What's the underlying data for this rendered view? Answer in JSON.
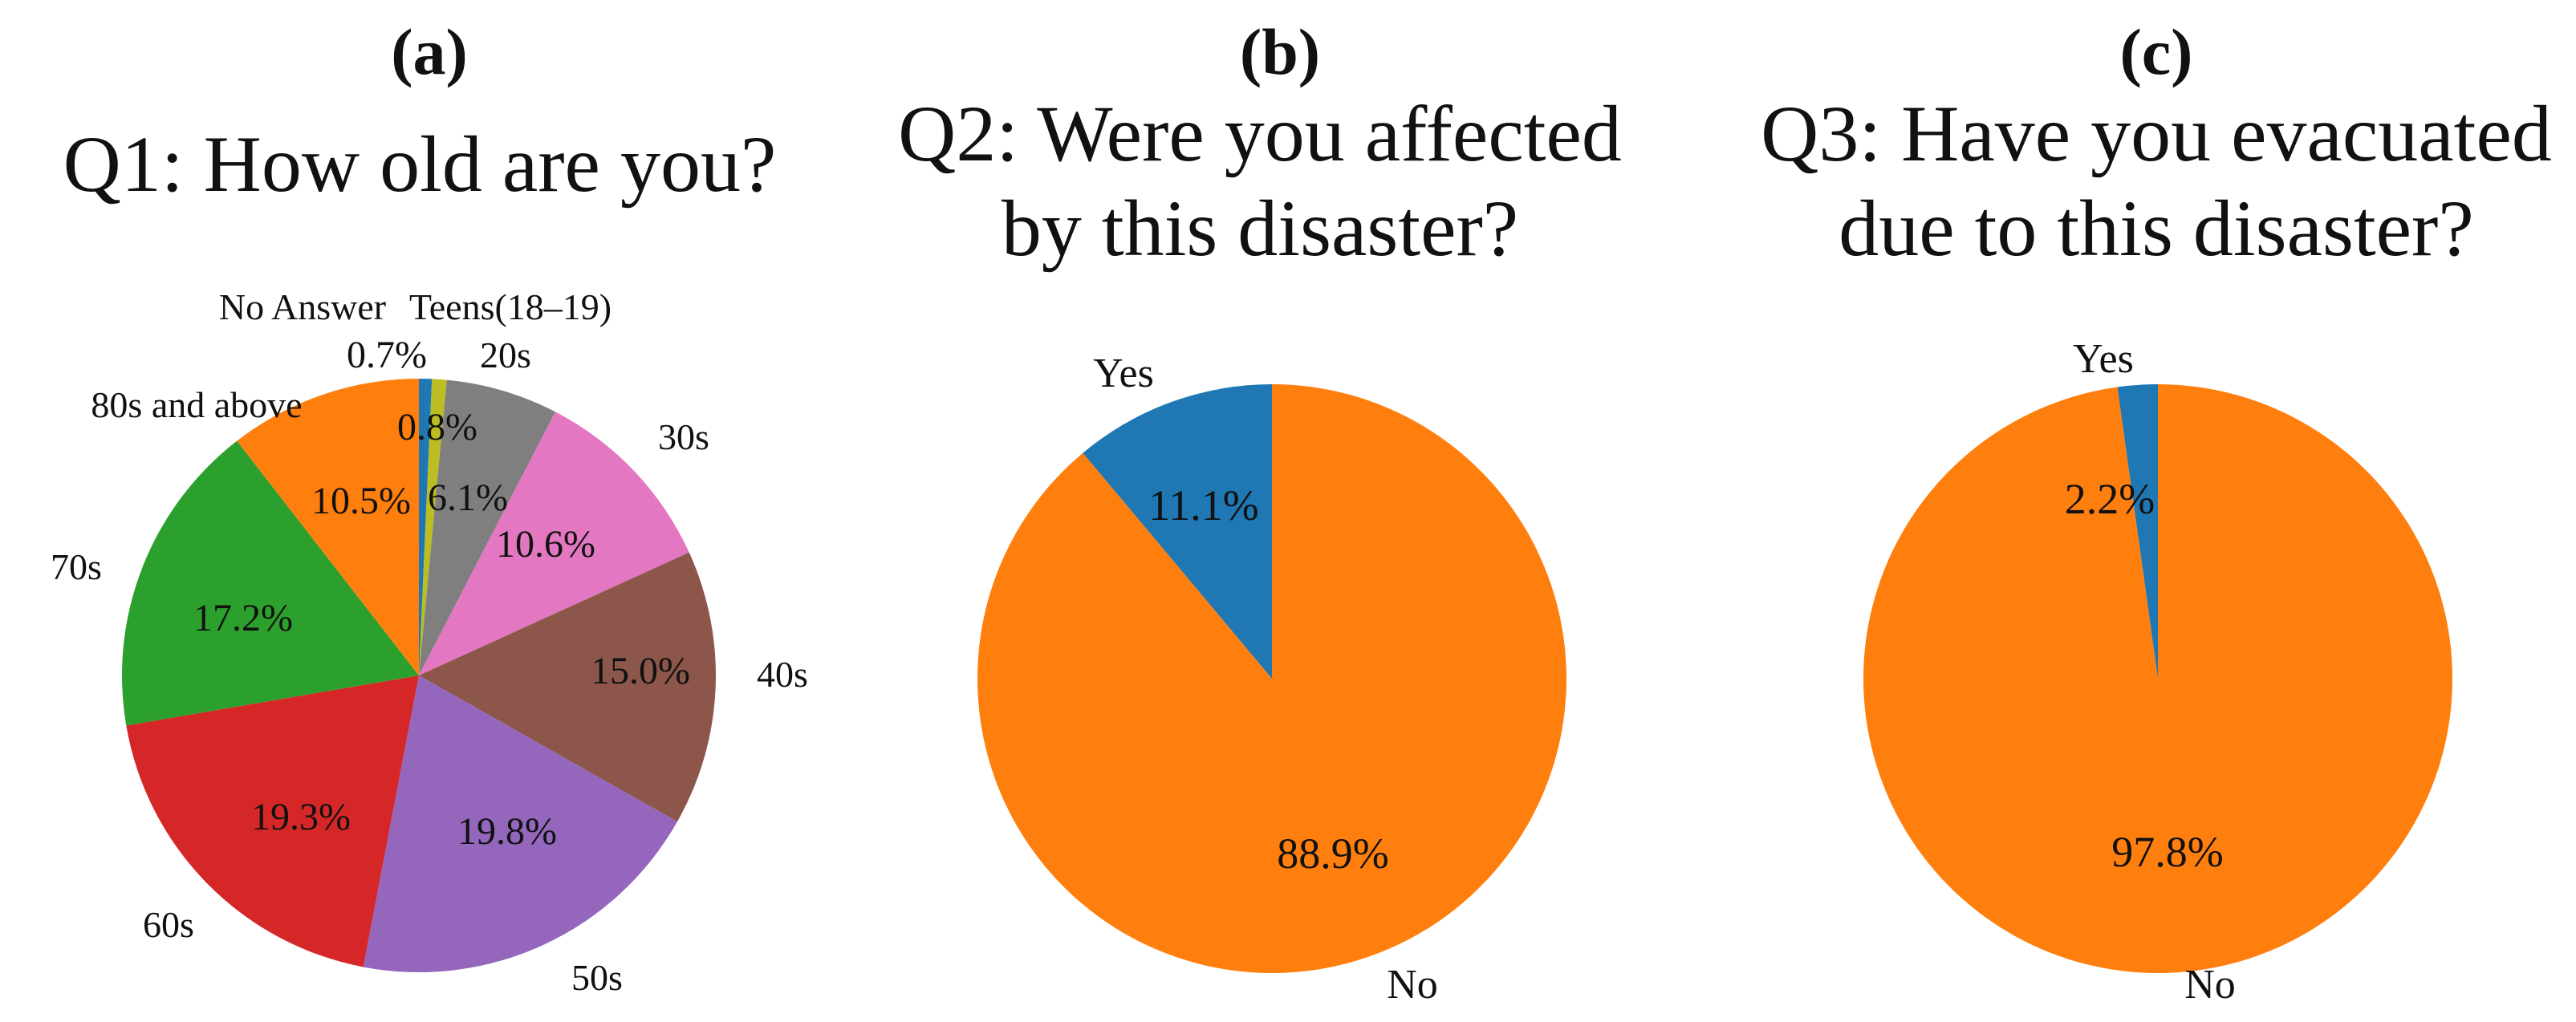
{
  "chart_data": [
    {
      "type": "pie",
      "panel": "(a)",
      "title": "Q1: How old are you?",
      "start_angle": "top, clockwise",
      "slices": [
        {
          "label": "No Answer",
          "value": 0.7,
          "value_label": "0.7%",
          "color": "#1f77b4"
        },
        {
          "label": "Teens(18–19)",
          "value": 0.8,
          "value_label": "0.8%",
          "color": "#bcbd22"
        },
        {
          "label": "20s",
          "value": 6.1,
          "value_label": "6.1%",
          "color": "#7f7f7f"
        },
        {
          "label": "30s",
          "value": 10.6,
          "value_label": "10.6%",
          "color": "#e377c2"
        },
        {
          "label": "40s",
          "value": 15.0,
          "value_label": "15.0%",
          "color": "#8c564b"
        },
        {
          "label": "50s",
          "value": 19.8,
          "value_label": "19.8%",
          "color": "#9467bd"
        },
        {
          "label": "60s",
          "value": 19.3,
          "value_label": "19.3%",
          "color": "#d62728"
        },
        {
          "label": "70s",
          "value": 17.2,
          "value_label": "17.2%",
          "color": "#2ca02c"
        },
        {
          "label": "80s and above",
          "value": 10.5,
          "value_label": "10.5%",
          "color": "#ff7f0e"
        }
      ]
    },
    {
      "type": "pie",
      "panel": "(b)",
      "title_lines": [
        "Q2: Were you affected",
        "by this disaster?"
      ],
      "start_angle": "top, counterclockwise",
      "slices": [
        {
          "label": "Yes",
          "value": 11.1,
          "value_label": "11.1%",
          "color": "#1f77b4"
        },
        {
          "label": "No",
          "value": 88.9,
          "value_label": "88.9%",
          "color": "#ff7f0e"
        }
      ]
    },
    {
      "type": "pie",
      "panel": "(c)",
      "title_lines": [
        "Q3: Have you evacuated",
        "due to this disaster?"
      ],
      "start_angle": "top, counterclockwise",
      "slices": [
        {
          "label": "Yes",
          "value": 2.2,
          "value_label": "2.2%",
          "color": "#1f77b4"
        },
        {
          "label": "No",
          "value": 97.8,
          "value_label": "97.8%",
          "color": "#ff7f0e"
        }
      ]
    }
  ]
}
